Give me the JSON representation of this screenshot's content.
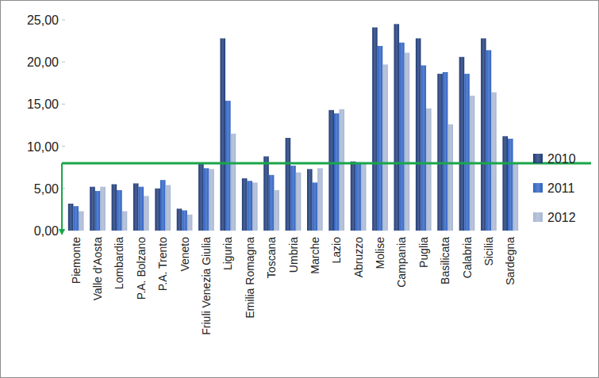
{
  "chart_data": {
    "type": "bar",
    "categories": [
      "Piemonte",
      "Valle d'Aosta",
      "Lombardia",
      "P.A. Bolzano",
      "P.A. Trento",
      "Veneto",
      "Friuli Venezia Giulia",
      "Liguria",
      "Emilia Romagna",
      "Toscana",
      "Umbria",
      "Marche",
      "Lazio",
      "Abruzzo",
      "Molise",
      "Campania",
      "Puglia",
      "Basilicata",
      "Calabria",
      "Sicilia",
      "Sardegna"
    ],
    "series": [
      {
        "name": "2010",
        "color": "#1f3b78",
        "values": [
          3.2,
          5.2,
          5.5,
          5.6,
          5.0,
          2.6,
          7.9,
          22.8,
          6.2,
          8.8,
          11.0,
          7.3,
          14.3,
          8.2,
          24.1,
          24.5,
          22.8,
          18.6,
          20.6,
          22.8,
          11.2
        ]
      },
      {
        "name": "2011",
        "color": "#2f62c2",
        "values": [
          2.9,
          4.7,
          4.8,
          5.2,
          6.0,
          2.4,
          7.4,
          15.4,
          5.9,
          6.6,
          7.7,
          5.7,
          13.9,
          8.1,
          21.9,
          22.3,
          19.6,
          18.8,
          18.6,
          21.4,
          10.9
        ]
      },
      {
        "name": "2012",
        "color": "#a8b7d3",
        "values": [
          2.3,
          5.2,
          2.3,
          4.1,
          5.4,
          1.9,
          7.3,
          11.5,
          5.7,
          4.8,
          6.9,
          7.4,
          14.4,
          8.0,
          19.7,
          21.1,
          14.5,
          12.6,
          16.0,
          16.4,
          7.9
        ]
      }
    ],
    "ylim": [
      0,
      25
    ],
    "yticks": [
      {
        "value": 0,
        "label": "0,00"
      },
      {
        "value": 5,
        "label": "5,00"
      },
      {
        "value": 10,
        "label": "10,00"
      },
      {
        "value": 15,
        "label": "15,00"
      },
      {
        "value": 20,
        "label": "20,00"
      },
      {
        "value": 25,
        "label": "25,00"
      }
    ],
    "grid": false,
    "legend": "right",
    "reference_line": {
      "value": 8,
      "color": "#1aa64a"
    }
  }
}
